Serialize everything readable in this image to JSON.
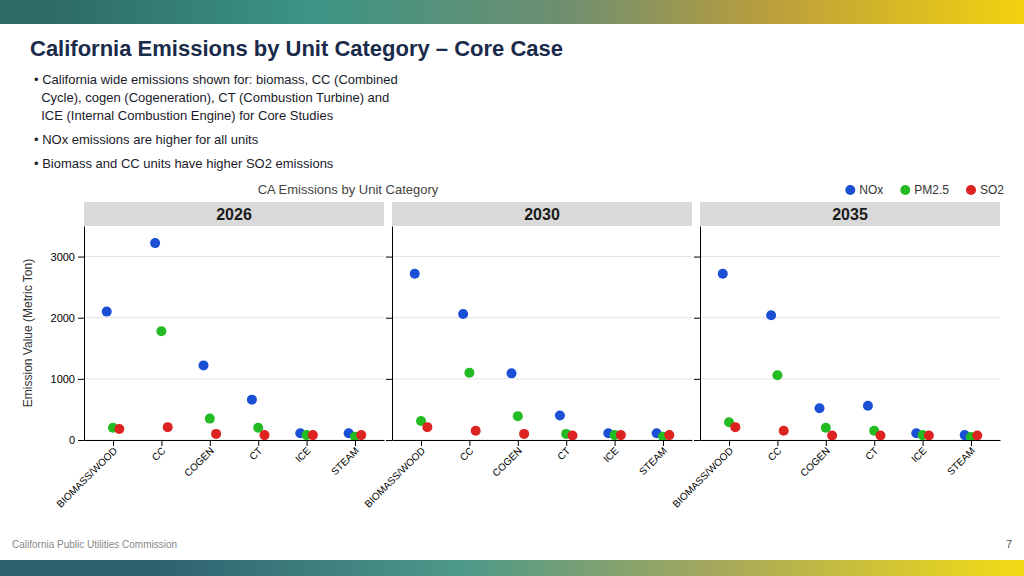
{
  "slide": {
    "title": "California Emissions by Unit Category – Core Case",
    "bullets": [
      [
        "• California wide emissions shown for: biomass, CC (Combined",
        "  Cycle), cogen (Cogeneration), CT (Combustion Turbine) and",
        "  ICE (Internal Combustion Engine) for Core Studies"
      ],
      [
        "• NOx emissions are higher for all units"
      ],
      [
        "• Biomass and CC units have higher SO2 emissions"
      ]
    ],
    "chart_title": "CA Emissions by Unit Category",
    "footer": "California Public Utilities Commission",
    "page_number": "7"
  },
  "chart_data": [
    {
      "type": "scatter",
      "title": "2026",
      "ylabel": "Emission Value (Metric Ton)",
      "categories": [
        "BIOMASS/WOOD",
        "CC",
        "COGEN",
        "CT",
        "ICE",
        "STEAM"
      ],
      "series": [
        {
          "name": "NOx",
          "color": "#1a4fd6",
          "values": [
            2100,
            3220,
            1220,
            660,
            110,
            110
          ]
        },
        {
          "name": "PM2.5",
          "color": "#22bb22",
          "values": [
            200,
            1780,
            350,
            200,
            80,
            55
          ]
        },
        {
          "name": "SO2",
          "color": "#dd2222",
          "values": [
            180,
            210,
            100,
            80,
            80,
            80
          ]
        }
      ],
      "ylim": [
        0,
        3500
      ],
      "yticks": [
        0,
        1000,
        2000,
        3000
      ],
      "grid": true
    },
    {
      "type": "scatter",
      "title": "2030",
      "categories": [
        "BIOMASS/WOOD",
        "CC",
        "COGEN",
        "CT",
        "ICE",
        "STEAM"
      ],
      "series": [
        {
          "name": "NOx",
          "color": "#1a4fd6",
          "values": [
            2720,
            2060,
            1090,
            400,
            110,
            110
          ]
        },
        {
          "name": "PM2.5",
          "color": "#22bb22",
          "values": [
            310,
            1100,
            390,
            100,
            80,
            55
          ]
        },
        {
          "name": "SO2",
          "color": "#dd2222",
          "values": [
            210,
            150,
            100,
            75,
            80,
            80
          ]
        }
      ],
      "ylim": [
        0,
        3500
      ],
      "yticks": [
        0,
        1000,
        2000,
        3000
      ],
      "grid": true,
      "tick_labels": "x"
    },
    {
      "type": "scatter",
      "title": "2035",
      "categories": [
        "BIOMASS/WOOD",
        "CC",
        "COGEN",
        "CT",
        "ICE",
        "STEAM"
      ],
      "series": [
        {
          "name": "NOx",
          "color": "#1a4fd6",
          "values": [
            2720,
            2040,
            520,
            560,
            110,
            80
          ]
        },
        {
          "name": "PM2.5",
          "color": "#22bb22",
          "values": [
            290,
            1060,
            200,
            150,
            80,
            50
          ]
        },
        {
          "name": "SO2",
          "color": "#dd2222",
          "values": [
            210,
            150,
            75,
            75,
            75,
            75
          ]
        }
      ],
      "ylim": [
        0,
        3500
      ],
      "yticks": [
        0,
        1000,
        2000,
        3000
      ],
      "grid": true,
      "tick_labels": "x",
      "legend": "upper right"
    }
  ]
}
